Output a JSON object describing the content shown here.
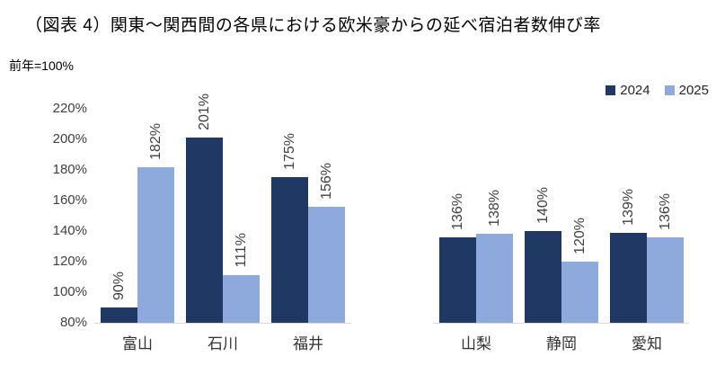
{
  "chart_data": {
    "type": "bar",
    "title": "（図表 4）関東～関西間の各県における欧米豪からの延べ宿泊者数伸び率",
    "subtitle": "前年=100%",
    "unit": "%",
    "ylim": [
      80,
      220
    ],
    "yticks": [
      220,
      200,
      180,
      160,
      140,
      120,
      100,
      80
    ],
    "grid": false,
    "legend_position": "top-right",
    "legend": [
      "2024",
      "2025"
    ],
    "series_colors": {
      "2024": "#1F3864",
      "2025": "#8EA9DB"
    },
    "data_label_rotation": -90,
    "axis_line_color": "#d9d9d9",
    "groups": [
      {
        "categories": [
          "富山",
          "石川",
          "福井"
        ],
        "series": [
          {
            "name": "2024",
            "values": [
              90,
              201,
              175
            ]
          },
          {
            "name": "2025",
            "values": [
              182,
              111,
              156
            ]
          }
        ]
      },
      {
        "categories": [
          "山梨",
          "静岡",
          "愛知"
        ],
        "series": [
          {
            "name": "2024",
            "values": [
              136,
              140,
              139
            ]
          },
          {
            "name": "2025",
            "values": [
              138,
              120,
              136
            ]
          }
        ]
      }
    ]
  }
}
